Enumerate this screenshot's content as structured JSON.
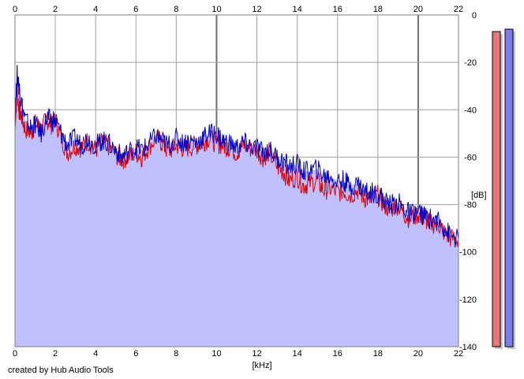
{
  "chart_data": {
    "type": "area",
    "xlabel": "[kHz]",
    "ylabel": "[dB]",
    "xlim": [
      0,
      22
    ],
    "ylim": [
      -140,
      0
    ],
    "x_ticks": [
      "0",
      "2",
      "4",
      "6",
      "8",
      "10",
      "12",
      "14",
      "16",
      "18",
      "20",
      "22"
    ],
    "y_ticks": [
      "0",
      "-20",
      "-40",
      "-60",
      "-80",
      "-100",
      "-120",
      "-140"
    ],
    "grid": true,
    "series": [
      {
        "color": "#e00000",
        "x": [
          0,
          0.1,
          0.2,
          0.3,
          0.5,
          0.8,
          1.0,
          1.3,
          1.6,
          1.8,
          2.0,
          2.3,
          2.6,
          3.0,
          3.3,
          3.6,
          4.0,
          4.3,
          4.6,
          5.0,
          5.3,
          5.6,
          6.0,
          6.3,
          6.6,
          7.0,
          7.3,
          7.6,
          8.0,
          8.3,
          8.6,
          9.0,
          9.3,
          9.6,
          10.0,
          10.3,
          10.6,
          11.0,
          11.3,
          11.6,
          12.0,
          12.3,
          12.6,
          13.0,
          13.3,
          13.6,
          14.0,
          14.3,
          14.6,
          15.0,
          15.3,
          15.6,
          16.0,
          16.3,
          16.6,
          17.0,
          17.3,
          17.6,
          18.0,
          18.3,
          18.6,
          19.0,
          19.3,
          19.6,
          20.0,
          20.3,
          20.6,
          21.0,
          21.3,
          21.6,
          22.0
        ],
        "y": [
          -46,
          -32,
          -40,
          -42,
          -48,
          -50,
          -46,
          -48,
          -44,
          -46,
          -44,
          -52,
          -58,
          -55,
          -56,
          -53,
          -57,
          -54,
          -55,
          -59,
          -61,
          -60,
          -58,
          -60,
          -56,
          -52,
          -54,
          -58,
          -55,
          -56,
          -56,
          -55,
          -54,
          -52,
          -54,
          -55,
          -56,
          -58,
          -55,
          -56,
          -57,
          -60,
          -58,
          -64,
          -66,
          -70,
          -68,
          -72,
          -71,
          -70,
          -74,
          -73,
          -75,
          -74,
          -76,
          -74,
          -77,
          -78,
          -76,
          -80,
          -82,
          -80,
          -84,
          -86,
          -84,
          -86,
          -88,
          -88,
          -92,
          -94,
          -95
        ]
      },
      {
        "color": "#0000d0",
        "x": [
          0,
          0.1,
          0.2,
          0.3,
          0.5,
          0.8,
          1.0,
          1.3,
          1.6,
          1.8,
          2.0,
          2.3,
          2.6,
          3.0,
          3.3,
          3.6,
          4.0,
          4.3,
          4.6,
          5.0,
          5.3,
          5.6,
          6.0,
          6.3,
          6.6,
          7.0,
          7.3,
          7.6,
          8.0,
          8.3,
          8.6,
          9.0,
          9.3,
          9.6,
          10.0,
          10.3,
          10.6,
          11.0,
          11.3,
          11.6,
          12.0,
          12.3,
          12.6,
          13.0,
          13.3,
          13.6,
          14.0,
          14.3,
          14.6,
          15.0,
          15.3,
          15.6,
          16.0,
          16.3,
          16.6,
          17.0,
          17.3,
          17.6,
          18.0,
          18.3,
          18.6,
          19.0,
          19.3,
          19.6,
          20.0,
          20.3,
          20.6,
          21.0,
          21.3,
          21.6,
          22.0
        ],
        "y": [
          -45,
          -25,
          -30,
          -36,
          -44,
          -48,
          -46,
          -50,
          -43,
          -45,
          -45,
          -50,
          -55,
          -52,
          -55,
          -52,
          -55,
          -53,
          -54,
          -57,
          -60,
          -58,
          -56,
          -57,
          -55,
          -51,
          -53,
          -55,
          -52,
          -54,
          -53,
          -54,
          -52,
          -50,
          -50,
          -53,
          -54,
          -56,
          -54,
          -55,
          -56,
          -58,
          -57,
          -60,
          -62,
          -64,
          -63,
          -66,
          -66,
          -65,
          -68,
          -68,
          -70,
          -70,
          -72,
          -71,
          -74,
          -75,
          -75,
          -78,
          -80,
          -79,
          -82,
          -84,
          -83,
          -85,
          -86,
          -87,
          -90,
          -93,
          -95
        ]
      }
    ],
    "level_meters": [
      {
        "color": "#e87878",
        "level_db": -7
      },
      {
        "color": "#7c7cec",
        "level_db": -6
      }
    ]
  },
  "footer": {
    "credit": "created by Hub Audio Tools"
  }
}
